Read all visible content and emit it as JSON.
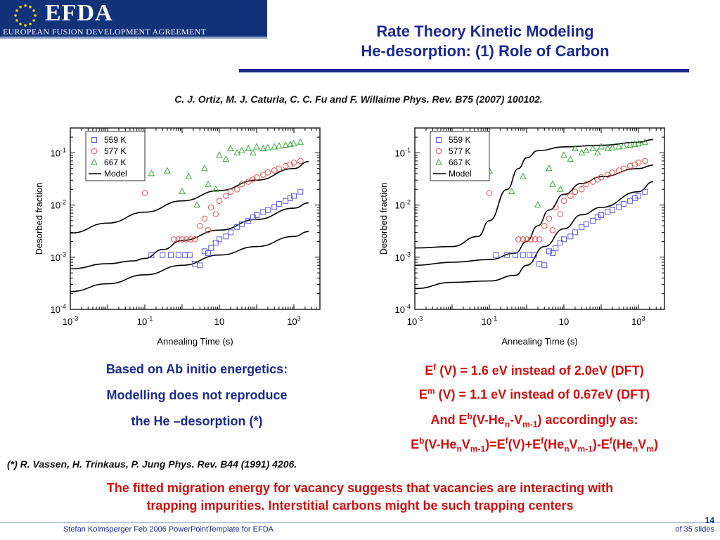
{
  "logo": {
    "text": "EFDA",
    "subtitle": "EUROPEAN FUSION DEVELOPMENT AGREEMENT",
    "icon": "eu-stars-icon"
  },
  "title": {
    "line1": "Rate Theory Kinetic Modeling",
    "line2": "He-desorption: (1) Role of Carbon"
  },
  "citation": "C. J. Ortiz, M. J. Caturla, C. C. Fu and F. Willaime Phys. Rev. B75 (2007) 100102.",
  "left_text": {
    "line1": "Based on Ab initio energetics:",
    "line2": "Modelling does not reproduce",
    "line3": "the He –desorption (*)"
  },
  "right_text": {
    "ef_sym": "E",
    "ef_sup": "f",
    "ef_rest": " (V) = 1.6 eV instead of 2.0eV (DFT)",
    "em_sym": "E",
    "em_sup": "m",
    "em_rest": " (V) = 1.1 eV instead of 0.67eV (DFT)",
    "line3_a": "And E",
    "line3_sup": "b",
    "line3_b": "(V-He",
    "line3_sub1": "n",
    "line3_c": "-V",
    "line3_sub2": "m-1",
    "line3_d": ") accordingly as:",
    "line4": "E^b(V-He_nV_m-1)=E^f(V)+E^f(He_nV_m-1)-E^f(He_nV_m)"
  },
  "reference": "(*) R. Vassen, H. Trinkaus, P. Jung Phys. Rev. B44 (1991) 4206.",
  "conclusion": {
    "line1": "The fitted migration energy for vacancy suggests that vacancies are interacting with",
    "line2": "trapping impurities. Interstitial carbons might be such trapping centers"
  },
  "footer": {
    "author": "Stefan Kolmsperger Feb 2006 PowerPointTemplate for EFDA",
    "page": "14",
    "of": "of  35 slides"
  },
  "colors": {
    "navy": "#1a2a8c",
    "red": "#d01010",
    "s559": "#5a5ad8",
    "s577": "#e05050",
    "s667": "#3aa83a"
  },
  "chart_data": [
    {
      "type": "scatter",
      "xlabel": "Annealing Time (s)",
      "ylabel": "Desorbed fraction",
      "xscale": "log",
      "yscale": "log",
      "xlim": [
        0.001,
        5000
      ],
      "ylim": [
        0.0001,
        0.3
      ],
      "xticks": [
        {
          "v": 0.001,
          "b": "10",
          "e": "-3"
        },
        {
          "v": 0.1,
          "b": "10",
          "e": "-1"
        },
        {
          "v": 10,
          "b": "10",
          "e": ""
        },
        {
          "v": 1000,
          "b": "10",
          "e": "3"
        }
      ],
      "yticks": [
        {
          "v": 0.1,
          "b": "10",
          "e": "-1"
        },
        {
          "v": 0.01,
          "b": "10",
          "e": "-2"
        },
        {
          "v": 0.001,
          "b": "10",
          "e": "-3"
        },
        {
          "v": 0.0001,
          "b": "10",
          "e": "-4"
        }
      ],
      "legend": {
        "position": "top-left",
        "items": [
          "559 K",
          "577 K",
          "667 K",
          "Model"
        ]
      },
      "series": [
        {
          "name": "559 K",
          "marker": "square",
          "color": "#5a5ad8",
          "points": [
            [
              0.15,
              0.0011
            ],
            [
              0.3,
              0.0011
            ],
            [
              0.5,
              0.0011
            ],
            [
              0.8,
              0.0011
            ],
            [
              1.2,
              0.0011
            ],
            [
              1.6,
              0.0011
            ],
            [
              2.2,
              0.00075
            ],
            [
              3,
              0.0007
            ],
            [
              4,
              0.0013
            ],
            [
              5,
              0.0012
            ],
            [
              6,
              0.0015
            ],
            [
              8,
              0.0019
            ],
            [
              10,
              0.0022
            ],
            [
              15,
              0.0025
            ],
            [
              20,
              0.003
            ],
            [
              30,
              0.0038
            ],
            [
              40,
              0.0043
            ],
            [
              60,
              0.005
            ],
            [
              80,
              0.0058
            ],
            [
              100,
              0.0064
            ],
            [
              150,
              0.0074
            ],
            [
              200,
              0.008
            ],
            [
              300,
              0.0092
            ],
            [
              400,
              0.0105
            ],
            [
              600,
              0.012
            ],
            [
              800,
              0.0135
            ],
            [
              1000,
              0.015
            ],
            [
              1500,
              0.018
            ]
          ]
        },
        {
          "name": "577 K",
          "marker": "circle",
          "color": "#e05050",
          "points": [
            [
              0.1,
              0.017
            ],
            [
              0.6,
              0.0022
            ],
            [
              0.8,
              0.0022
            ],
            [
              1,
              0.0022
            ],
            [
              1.3,
              0.0022
            ],
            [
              1.7,
              0.0022
            ],
            [
              2.2,
              0.0022
            ],
            [
              3,
              0.004
            ],
            [
              4,
              0.0055
            ],
            [
              5,
              0.0033
            ],
            [
              6,
              0.009
            ],
            [
              8,
              0.0067
            ],
            [
              10,
              0.012
            ],
            [
              15,
              0.015
            ],
            [
              20,
              0.018
            ],
            [
              30,
              0.02
            ],
            [
              40,
              0.025
            ],
            [
              60,
              0.028
            ],
            [
              80,
              0.031
            ],
            [
              100,
              0.034
            ],
            [
              150,
              0.038
            ],
            [
              200,
              0.042
            ],
            [
              300,
              0.046
            ],
            [
              400,
              0.05
            ],
            [
              600,
              0.056
            ],
            [
              800,
              0.06
            ],
            [
              1000,
              0.065
            ],
            [
              1500,
              0.07
            ]
          ]
        },
        {
          "name": "667 K",
          "marker": "triangle",
          "color": "#3aa83a",
          "points": [
            [
              0.15,
              0.04
            ],
            [
              0.4,
              0.045
            ],
            [
              1,
              0.018
            ],
            [
              1.5,
              0.035
            ],
            [
              2.5,
              0.01
            ],
            [
              4,
              0.05
            ],
            [
              5,
              0.025
            ],
            [
              8,
              0.02
            ],
            [
              10,
              0.09
            ],
            [
              15,
              0.075
            ],
            [
              20,
              0.12
            ],
            [
              30,
              0.1
            ],
            [
              40,
              0.11
            ],
            [
              60,
              0.12
            ],
            [
              80,
              0.1
            ],
            [
              100,
              0.13
            ],
            [
              150,
              0.12
            ],
            [
              200,
              0.125
            ],
            [
              300,
              0.13
            ],
            [
              400,
              0.135
            ],
            [
              600,
              0.14
            ],
            [
              800,
              0.145
            ],
            [
              1000,
              0.15
            ],
            [
              1500,
              0.16
            ]
          ]
        }
      ],
      "model": [
        [
          [
            0.001,
            0.0029
          ],
          [
            0.01,
            0.0045
          ],
          [
            0.1,
            0.0073
          ],
          [
            1,
            0.012
          ],
          [
            10,
            0.019
          ],
          [
            100,
            0.03
          ],
          [
            1000,
            0.05
          ],
          [
            2500,
            0.068
          ]
        ],
        [
          [
            0.001,
            0.0006
          ],
          [
            0.01,
            0.00075
          ],
          [
            0.05,
            0.00085
          ],
          [
            0.1,
            0.00095
          ],
          [
            0.3,
            0.0014
          ],
          [
            1,
            0.0021
          ],
          [
            10,
            0.0033
          ],
          [
            100,
            0.0053
          ],
          [
            1000,
            0.0087
          ],
          [
            2500,
            0.011
          ]
        ],
        [
          [
            0.001,
            0.00022
          ],
          [
            0.01,
            0.00031
          ],
          [
            0.1,
            0.00046
          ],
          [
            1,
            0.0007
          ],
          [
            10,
            0.0011
          ],
          [
            100,
            0.0016
          ],
          [
            1000,
            0.0025
          ],
          [
            2500,
            0.0031
          ]
        ]
      ]
    },
    {
      "type": "scatter",
      "xlabel": "Annealing Time (s)",
      "ylabel": "Desorbed fraction",
      "xscale": "log",
      "yscale": "log",
      "xlim": [
        0.001,
        5000
      ],
      "ylim": [
        0.0001,
        0.3
      ],
      "xticks": [
        {
          "v": 0.001,
          "b": "10",
          "e": "-3"
        },
        {
          "v": 0.1,
          "b": "10",
          "e": "-1"
        },
        {
          "v": 10,
          "b": "10",
          "e": ""
        },
        {
          "v": 1000,
          "b": "10",
          "e": "3"
        }
      ],
      "yticks": [
        {
          "v": 0.1,
          "b": "10",
          "e": "-1"
        },
        {
          "v": 0.01,
          "b": "10",
          "e": "-2"
        },
        {
          "v": 0.001,
          "b": "10",
          "e": "-3"
        },
        {
          "v": 0.0001,
          "b": "10",
          "e": "-4"
        }
      ],
      "legend": {
        "position": "top-left",
        "items": [
          "559 K",
          "577 K",
          "667 K",
          "Model"
        ]
      },
      "series": [
        {
          "name": "559 K",
          "marker": "square",
          "color": "#5a5ad8",
          "points": [
            [
              0.15,
              0.0011
            ],
            [
              0.3,
              0.0011
            ],
            [
              0.5,
              0.0011
            ],
            [
              0.8,
              0.0011
            ],
            [
              1.2,
              0.0011
            ],
            [
              1.6,
              0.0011
            ],
            [
              2.2,
              0.00075
            ],
            [
              3,
              0.0007
            ],
            [
              4,
              0.0013
            ],
            [
              5,
              0.0012
            ],
            [
              6,
              0.0015
            ],
            [
              8,
              0.0019
            ],
            [
              10,
              0.0022
            ],
            [
              15,
              0.0025
            ],
            [
              20,
              0.003
            ],
            [
              30,
              0.0038
            ],
            [
              40,
              0.0043
            ],
            [
              60,
              0.005
            ],
            [
              80,
              0.0058
            ],
            [
              100,
              0.0064
            ],
            [
              150,
              0.0074
            ],
            [
              200,
              0.008
            ],
            [
              300,
              0.0092
            ],
            [
              400,
              0.0105
            ],
            [
              600,
              0.012
            ],
            [
              800,
              0.0135
            ],
            [
              1000,
              0.015
            ],
            [
              1500,
              0.018
            ]
          ]
        },
        {
          "name": "577 K",
          "marker": "circle",
          "color": "#e05050",
          "points": [
            [
              0.1,
              0.017
            ],
            [
              0.6,
              0.0022
            ],
            [
              0.8,
              0.0022
            ],
            [
              1,
              0.0022
            ],
            [
              1.3,
              0.0022
            ],
            [
              1.7,
              0.0022
            ],
            [
              2.2,
              0.0022
            ],
            [
              3,
              0.004
            ],
            [
              4,
              0.0055
            ],
            [
              5,
              0.0033
            ],
            [
              6,
              0.009
            ],
            [
              8,
              0.0067
            ],
            [
              10,
              0.012
            ],
            [
              15,
              0.015
            ],
            [
              20,
              0.018
            ],
            [
              30,
              0.02
            ],
            [
              40,
              0.025
            ],
            [
              60,
              0.028
            ],
            [
              80,
              0.031
            ],
            [
              100,
              0.034
            ],
            [
              150,
              0.038
            ],
            [
              200,
              0.042
            ],
            [
              300,
              0.046
            ],
            [
              400,
              0.05
            ],
            [
              600,
              0.056
            ],
            [
              800,
              0.06
            ],
            [
              1000,
              0.065
            ],
            [
              1500,
              0.07
            ]
          ]
        },
        {
          "name": "667 K",
          "marker": "triangle",
          "color": "#3aa83a",
          "points": [
            [
              0.01,
              0.04
            ],
            [
              0.1,
              0.045
            ],
            [
              0.4,
              0.018
            ],
            [
              0.8,
              0.035
            ],
            [
              2,
              0.01
            ],
            [
              4,
              0.05
            ],
            [
              5,
              0.025
            ],
            [
              8,
              0.02
            ],
            [
              10,
              0.09
            ],
            [
              15,
              0.075
            ],
            [
              20,
              0.12
            ],
            [
              30,
              0.1
            ],
            [
              40,
              0.11
            ],
            [
              60,
              0.12
            ],
            [
              80,
              0.1
            ],
            [
              100,
              0.13
            ],
            [
              150,
              0.12
            ],
            [
              200,
              0.125
            ],
            [
              300,
              0.13
            ],
            [
              400,
              0.135
            ],
            [
              600,
              0.14
            ],
            [
              800,
              0.145
            ],
            [
              1000,
              0.15
            ],
            [
              1500,
              0.16
            ]
          ]
        }
      ],
      "model": [
        [
          [
            0.001,
            0.0015
          ],
          [
            0.01,
            0.0016
          ],
          [
            0.05,
            0.0025
          ],
          [
            0.1,
            0.005
          ],
          [
            0.3,
            0.02
          ],
          [
            0.6,
            0.05
          ],
          [
            1,
            0.08
          ],
          [
            2,
            0.11
          ],
          [
            10,
            0.13
          ],
          [
            100,
            0.14
          ],
          [
            1000,
            0.16
          ],
          [
            2500,
            0.18
          ]
        ],
        [
          [
            0.001,
            0.0007
          ],
          [
            0.01,
            0.0008
          ],
          [
            0.1,
            0.0009
          ],
          [
            0.5,
            0.0012
          ],
          [
            1,
            0.002
          ],
          [
            2,
            0.004
          ],
          [
            4,
            0.008
          ],
          [
            10,
            0.016
          ],
          [
            30,
            0.026
          ],
          [
            100,
            0.035
          ],
          [
            1000,
            0.05
          ],
          [
            2500,
            0.058
          ]
        ],
        [
          [
            0.001,
            0.00025
          ],
          [
            0.01,
            0.00033
          ],
          [
            0.1,
            0.00035
          ],
          [
            0.5,
            0.00045
          ],
          [
            1,
            0.0007
          ],
          [
            3,
            0.0016
          ],
          [
            10,
            0.0035
          ],
          [
            30,
            0.0065
          ],
          [
            100,
            0.009
          ],
          [
            1000,
            0.018
          ],
          [
            2500,
            0.028
          ]
        ]
      ]
    }
  ]
}
